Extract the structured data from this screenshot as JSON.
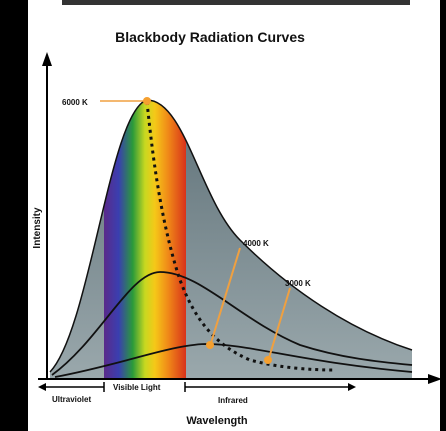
{
  "title": "Blackbody Radiation Curves",
  "axes": {
    "y_label": "Intensity",
    "x_label": "Wavelength"
  },
  "curves": [
    {
      "label": "6000 K"
    },
    {
      "label": "4000 K"
    },
    {
      "label": "3000 K"
    }
  ],
  "regions": [
    {
      "label": "Ultraviolet"
    },
    {
      "label": "Visible Light"
    },
    {
      "label": "Infrared"
    }
  ]
}
